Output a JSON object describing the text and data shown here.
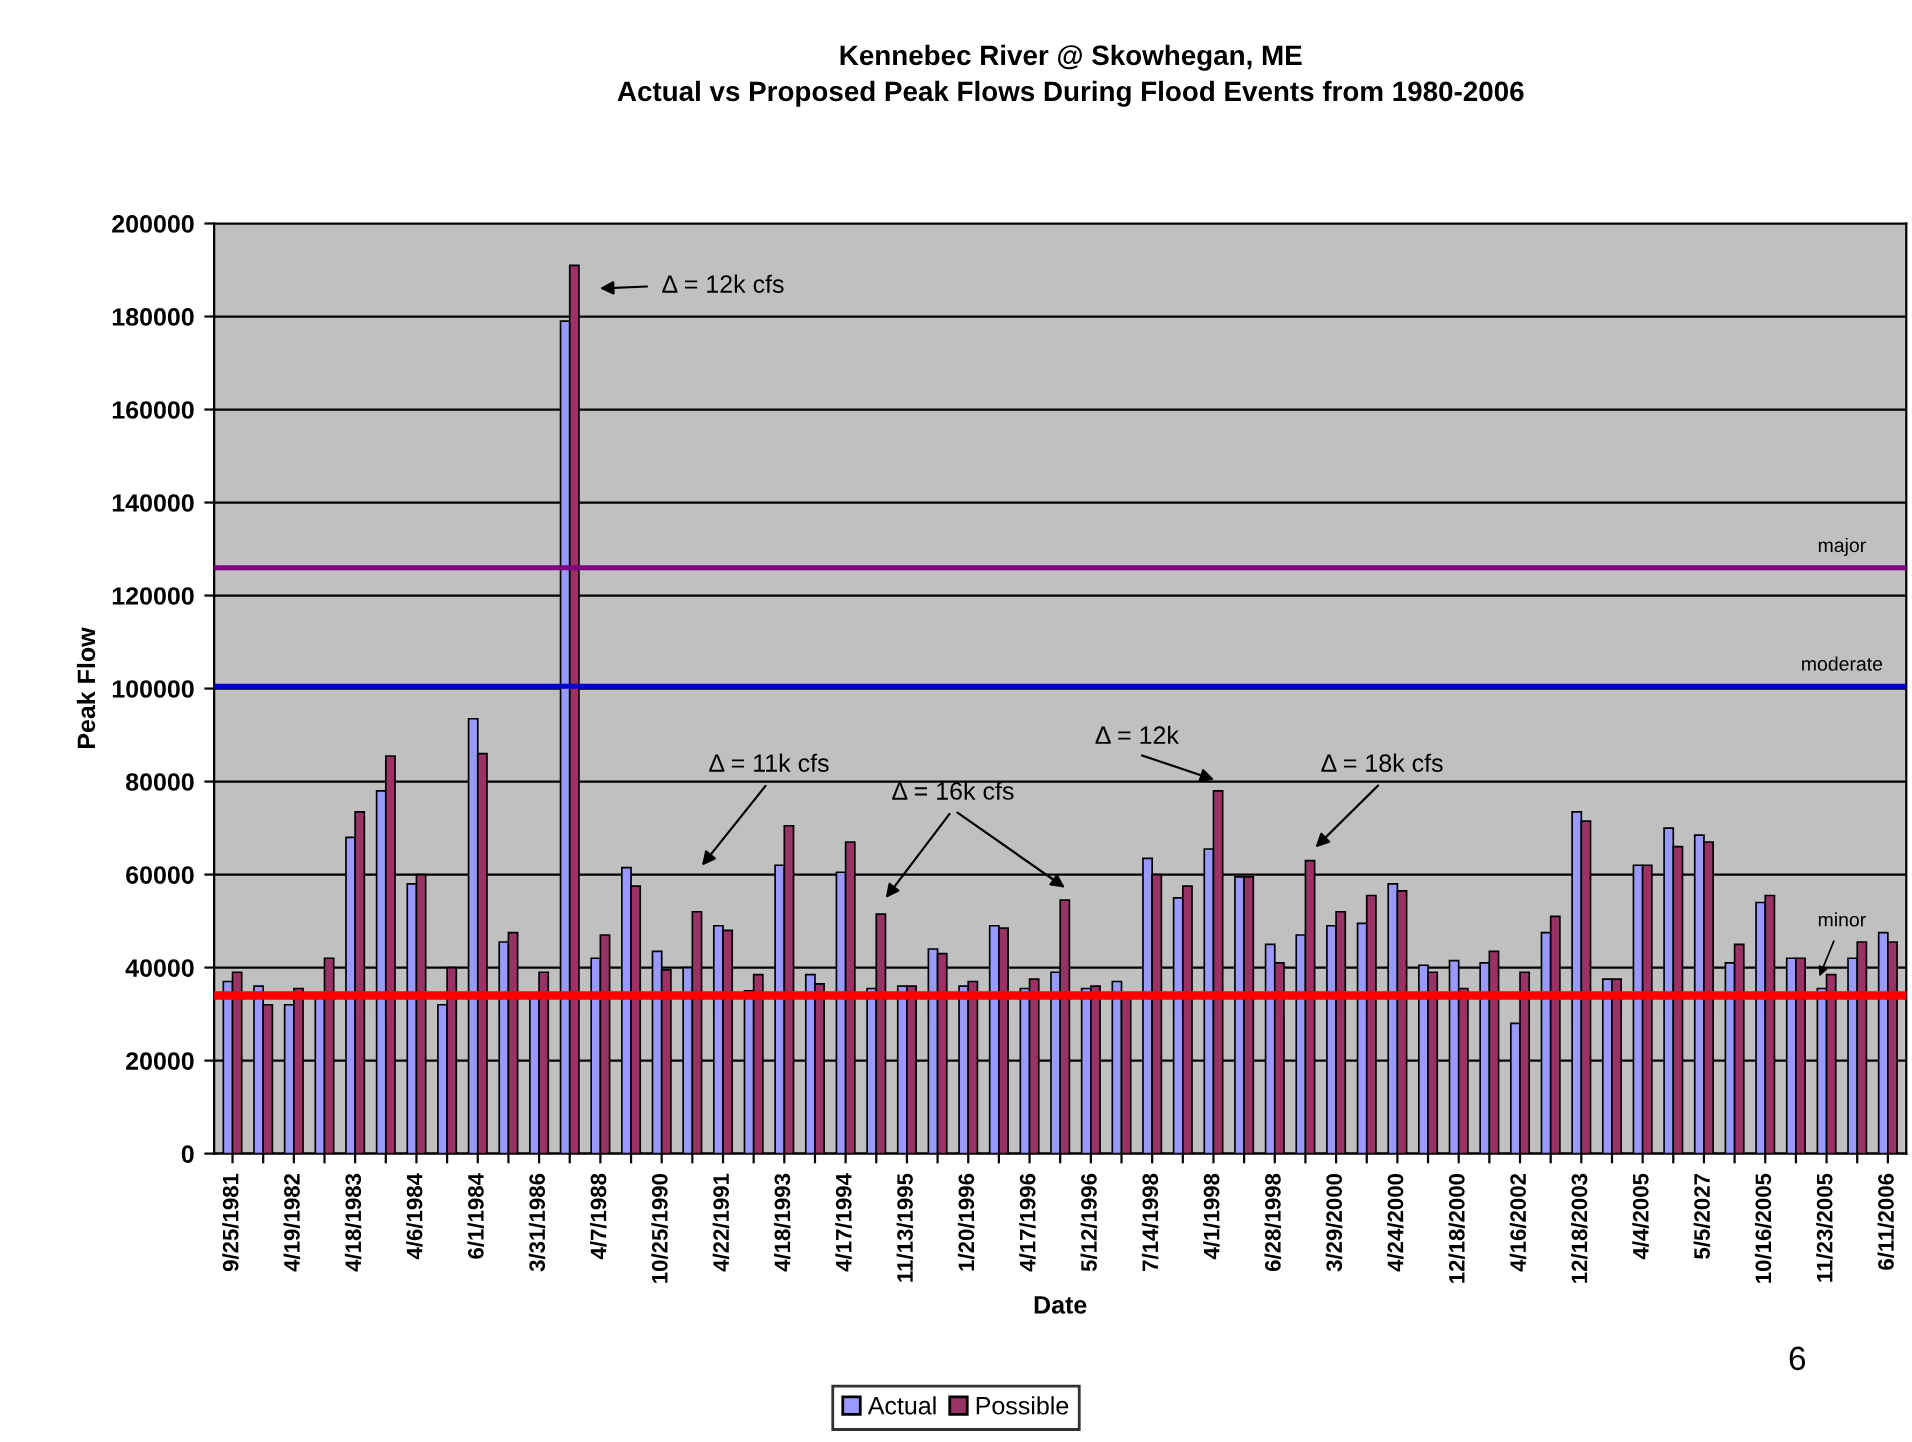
{
  "chart_data": {
    "type": "bar",
    "title": "Kennebec River @ Skowhegan, ME",
    "subtitle": "Actual vs Proposed Peak Flows During Flood Events from 1980-2006",
    "xlabel": "Date",
    "ylabel": "Peak Flow",
    "categories": [
      "9/25/1981",
      null,
      "4/19/1982",
      null,
      "4/18/1983",
      null,
      "4/6/1984",
      null,
      "6/1/1984",
      null,
      "3/31/1986",
      null,
      "4/7/1988",
      null,
      "10/25/1990",
      null,
      "4/22/1991",
      null,
      "4/18/1993",
      null,
      "4/17/1994",
      null,
      "11/13/1995",
      null,
      "1/20/1996",
      null,
      "4/17/1996",
      null,
      "5/12/1996",
      null,
      "7/14/1998",
      null,
      "4/1/1998",
      null,
      "6/28/1998",
      null,
      "3/29/2000",
      null,
      "4/24/2000",
      null,
      "12/18/2000",
      null,
      "4/16/2002",
      null,
      "12/18/2003",
      null,
      "4/4/2005",
      null,
      "5/5/2027",
      null,
      "10/16/2005",
      null,
      "11/23/2005",
      null,
      "6/11/2006"
    ],
    "series": [
      {
        "name": "Actual",
        "color": "#9999ff",
        "values": [
          37000,
          36000,
          32000,
          34500,
          68000,
          78000,
          58000,
          32000,
          93500,
          45500,
          34500,
          179000,
          42000,
          61500,
          43500,
          40000,
          49000,
          35000,
          62000,
          38500,
          60500,
          35500,
          36000,
          44000,
          36000,
          49000,
          35500,
          39000,
          35500,
          37000,
          63500,
          55000,
          65500,
          59500,
          45000,
          47000,
          49000,
          49500,
          58000,
          40500,
          41500,
          41000,
          28000,
          47500,
          73500,
          37500,
          62000,
          70000,
          68500,
          41000,
          54000,
          42000,
          35500,
          42000,
          47500
        ]
      },
      {
        "name": "Possible",
        "color": "#993366",
        "values": [
          39000,
          32000,
          35500,
          42000,
          73500,
          85500,
          60000,
          40000,
          86000,
          47500,
          39000,
          191000,
          47000,
          57500,
          39500,
          52000,
          48000,
          38500,
          70500,
          36500,
          67000,
          51500,
          36000,
          43000,
          37000,
          48500,
          37500,
          54500,
          36000,
          34500,
          60000,
          57500,
          78000,
          59500,
          41000,
          63000,
          52000,
          55500,
          56500,
          39000,
          35500,
          43500,
          39000,
          51000,
          71500,
          37500,
          62000,
          66000,
          67000,
          45000,
          55500,
          42000,
          38500,
          45500,
          45500
        ]
      }
    ],
    "ylim": [
      0,
      200000
    ],
    "yticks": [
      0,
      20000,
      40000,
      60000,
      80000,
      100000,
      120000,
      140000,
      160000,
      180000,
      200000
    ],
    "grid": "y",
    "legend": "bottom",
    "ref_lines": [
      {
        "axis": "y",
        "value": 126000,
        "label": "major",
        "color": "#800080"
      },
      {
        "axis": "y",
        "value": 100500,
        "label": "moderate",
        "color": "#0000cc"
      },
      {
        "axis": "y",
        "value": 34000,
        "label": "minor",
        "color": "#ff0000"
      }
    ],
    "annotations": [
      "Δ = 12k cfs",
      "Δ = 11k cfs",
      "Δ = 16k cfs",
      "Δ = 12k",
      "Δ = 18k cfs",
      "6"
    ]
  }
}
